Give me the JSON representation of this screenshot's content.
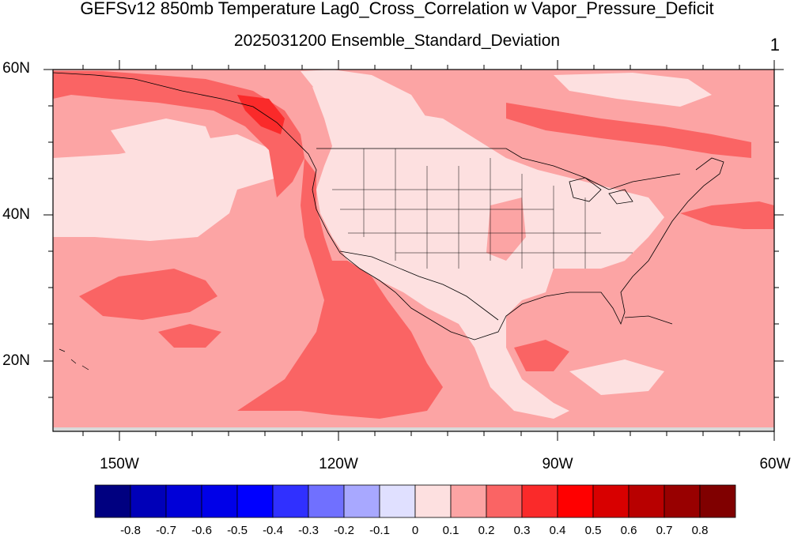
{
  "title": "GEFSv12 850mb Temperature Lag0_Cross_Correlation w Vapor_Pressure_Deficit",
  "subtitle": "2025031200 Ensemble_Standard_Deviation",
  "page_number": "1",
  "lat_labels": [
    "60N",
    "40N",
    "20N"
  ],
  "lon_labels": [
    "150W",
    "120W",
    "90W",
    "60W"
  ],
  "colorbar": {
    "colors": [
      "#000080",
      "#0000b8",
      "#0000d8",
      "#0000e8",
      "#0000ff",
      "#3030ff",
      "#7070ff",
      "#a8a8ff",
      "#e0e0ff",
      "#fde0e0",
      "#fca4a4",
      "#fa6464",
      "#fa2a2a",
      "#ff0000",
      "#d80000",
      "#b80000",
      "#980000",
      "#800000"
    ],
    "labels": [
      "-0.8",
      "-0.7",
      "-0.6",
      "-0.5",
      "-0.4",
      "-0.3",
      "-0.2",
      "-0.1",
      "0",
      "0.1",
      "0.2",
      "0.3",
      "0.4",
      "0.5",
      "0.6",
      "0.7",
      "0.8"
    ]
  },
  "field_colors": {
    "lightest": "#fde0e0",
    "light": "#fca4a4",
    "medium": "#fa6464",
    "strong": "#fa2a2a"
  }
}
